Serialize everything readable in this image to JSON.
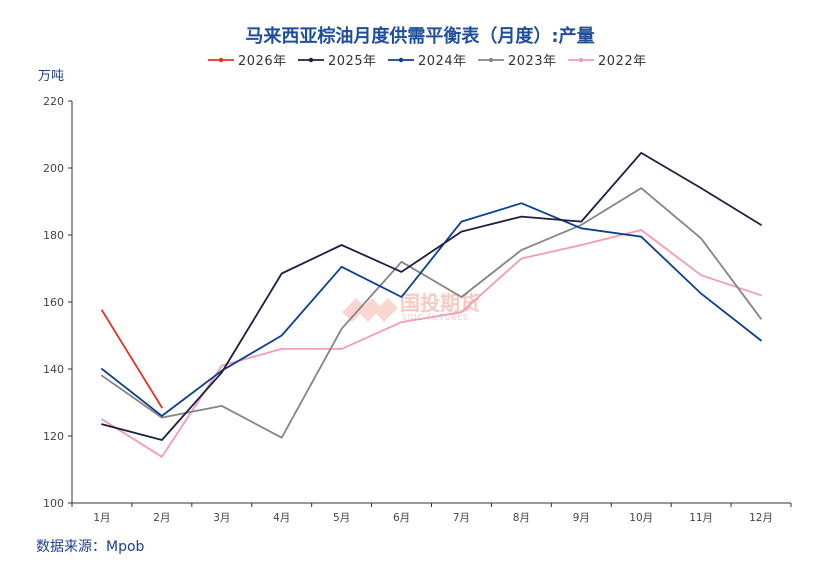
{
  "chart_data": {
    "type": "line",
    "title": "马来西亚棕油月度供需平衡表（月度）:产量",
    "ylabel": "万吨",
    "ylim": [
      100,
      220
    ],
    "yticks": [
      "100",
      "120",
      "140",
      "160",
      "180",
      "200",
      "220"
    ],
    "categories": [
      "1月",
      "2月",
      "3月",
      "4月",
      "5月",
      "6月",
      "7月",
      "8月",
      "9月",
      "10月",
      "11月",
      "12月"
    ],
    "legend_position": "top",
    "grid": false,
    "series": [
      {
        "name": "2026年",
        "color": "#e8321e",
        "values": [
          157.5,
          128.5,
          null,
          null,
          null,
          null,
          null,
          null,
          null,
          null,
          null,
          null
        ]
      },
      {
        "name": "2025年",
        "color": "#1d2041",
        "values": [
          123.5,
          118.8,
          139.0,
          168.5,
          177.0,
          169.0,
          181.0,
          185.5,
          184.0,
          204.5,
          194.0,
          183.0
        ]
      },
      {
        "name": "2024年",
        "color": "#0c3f92",
        "values": [
          140.0,
          126.0,
          139.5,
          150.0,
          170.5,
          161.5,
          184.0,
          189.5,
          182.0,
          179.5,
          162.5,
          148.5
        ]
      },
      {
        "name": "2023年",
        "color": "#858585",
        "values": [
          138.0,
          125.5,
          129.0,
          119.5,
          152.0,
          172.0,
          161.5,
          175.5,
          183.0,
          194.0,
          179.0,
          155.0
        ]
      },
      {
        "name": "2022年",
        "color": "#f59ab4",
        "values": [
          125.0,
          113.8,
          141.0,
          146.0,
          146.0,
          154.0,
          157.0,
          173.0,
          177.0,
          181.5,
          168.0,
          162.0
        ]
      }
    ],
    "source": "数据来源：Mpob",
    "watermark": {
      "cn": "国投期货",
      "en": "SDIC FUTURES"
    }
  }
}
